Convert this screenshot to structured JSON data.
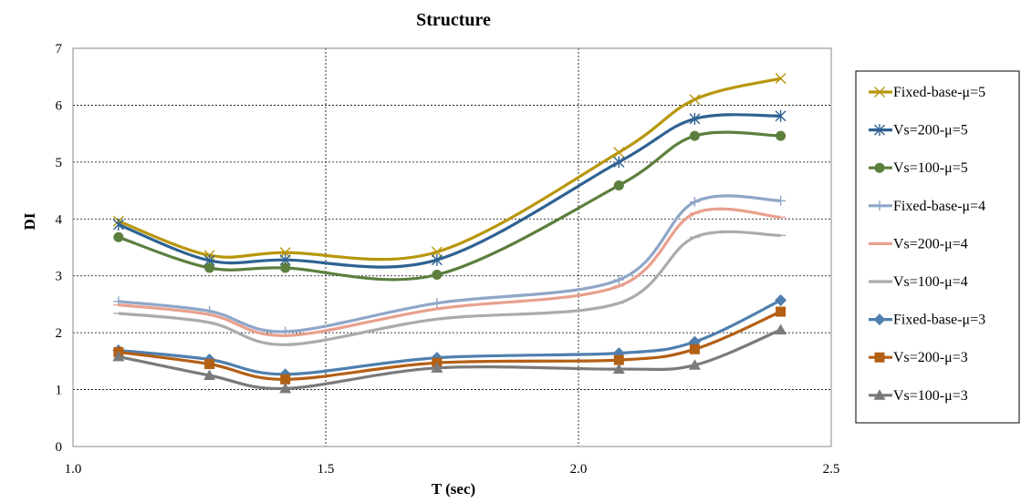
{
  "chart_data": {
    "type": "line",
    "title": "Structure",
    "xlabel": "T (sec)",
    "ylabel": "DI",
    "xlim": [
      1.0,
      2.5
    ],
    "ylim": [
      0,
      7
    ],
    "xticks": [
      1.0,
      1.5,
      2.0,
      2.5
    ],
    "xtick_labels": [
      "1.0",
      "1.5",
      "2.0",
      "2.5"
    ],
    "yticks": [
      0,
      1,
      2,
      3,
      4,
      5,
      6,
      7
    ],
    "ytick_labels": [
      "0",
      "1",
      "2",
      "3",
      "4",
      "5",
      "6",
      "7"
    ],
    "grid": true,
    "legend_position": "right",
    "x": [
      1.09,
      1.27,
      1.42,
      1.72,
      2.08,
      2.23,
      2.4
    ],
    "series": [
      {
        "name": "Fixed-base-μ=5",
        "marker": "x",
        "color": "#b8960c",
        "values": [
          3.96,
          3.36,
          3.41,
          3.42,
          5.17,
          6.1,
          6.47
        ]
      },
      {
        "name": "Vs=200-μ=5",
        "marker": "star",
        "color": "#2e6291",
        "values": [
          3.9,
          3.27,
          3.28,
          3.28,
          5.0,
          5.76,
          5.81
        ]
      },
      {
        "name": "Vs=100-μ=5",
        "marker": "circle",
        "color": "#5c7f3d",
        "values": [
          3.68,
          3.14,
          3.14,
          3.02,
          4.59,
          5.46,
          5.46
        ]
      },
      {
        "name": "Fixed-base-μ=4",
        "marker": "plus",
        "color": "#8ea6c8",
        "values": [
          2.55,
          2.38,
          2.02,
          2.52,
          2.93,
          4.3,
          4.32
        ]
      },
      {
        "name": "Vs=200-μ=4",
        "marker": "dash",
        "color": "#e8a08c",
        "values": [
          2.49,
          2.32,
          1.95,
          2.42,
          2.82,
          4.1,
          4.03
        ]
      },
      {
        "name": "Vs=100-μ=4",
        "marker": "dash",
        "color": "#ababab",
        "values": [
          2.34,
          2.18,
          1.79,
          2.24,
          2.52,
          3.68,
          3.71
        ]
      },
      {
        "name": "Fixed-base-μ=3",
        "marker": "diamond",
        "color": "#4f7fae",
        "values": [
          1.69,
          1.53,
          1.27,
          1.56,
          1.64,
          1.84,
          2.57
        ]
      },
      {
        "name": "Vs=200-μ=3",
        "marker": "square",
        "color": "#b35f14",
        "values": [
          1.66,
          1.45,
          1.18,
          1.47,
          1.52,
          1.71,
          2.37
        ]
      },
      {
        "name": "Vs=100-μ=3",
        "marker": "triangle",
        "color": "#7a7a7a",
        "values": [
          1.58,
          1.25,
          1.02,
          1.38,
          1.36,
          1.43,
          2.05
        ]
      }
    ]
  }
}
